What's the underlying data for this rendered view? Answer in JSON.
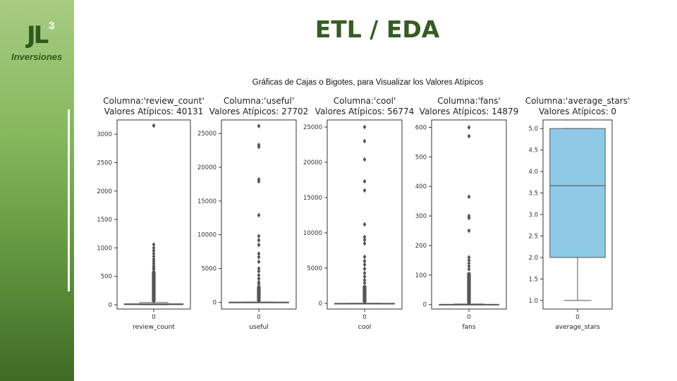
{
  "header": {
    "title": "ETL / EDA",
    "subtitle": "Gráficas de Cajas o Bigotes, para Visualizar los Valores Atípicos"
  },
  "logo": {
    "letters": "JL",
    "superscript": "3",
    "tagline": "Inversiones"
  },
  "colors": {
    "sidebar_top": "#a8cc82",
    "sidebar_bottom": "#3f6b26",
    "title": "#375c23",
    "box_fill": "#8ecae6",
    "outliers": "#555555"
  },
  "chart_data": [
    {
      "type": "box",
      "title_line1": "Columna:'review_count'",
      "title_line2": "Valores Atípicos: 40131",
      "xlabel": "review_count",
      "category": "0",
      "ylim": [
        -75,
        3250
      ],
      "yticks": [
        0,
        500,
        1000,
        1500,
        2000,
        2500,
        3000
      ],
      "box": {
        "min": 0,
        "q1": 2,
        "median": 7,
        "q3": 17,
        "max": 40
      },
      "outliers_dense_range": [
        40,
        600
      ],
      "outliers": [
        620,
        650,
        680,
        720,
        760,
        800,
        850,
        900,
        950,
        1000,
        1060,
        3150
      ]
    },
    {
      "type": "box",
      "title_line1": "Columna:'useful'",
      "title_line2": "Valores Atípicos: 27702",
      "xlabel": "useful",
      "category": "0",
      "ylim": [
        -1000,
        27000
      ],
      "yticks": [
        0,
        5000,
        10000,
        15000,
        20000,
        25000
      ],
      "box": {
        "min": 0,
        "q1": 1,
        "median": 5,
        "q3": 20,
        "max": 45
      },
      "outliers_dense_range": [
        45,
        2500
      ],
      "outliers": [
        2700,
        3000,
        3500,
        4000,
        4600,
        5000,
        6000,
        6700,
        7200,
        8500,
        9200,
        9800,
        12900,
        17900,
        18200,
        23000,
        23300,
        26100
      ]
    },
    {
      "type": "box",
      "title_line1": "Columna:'cool'",
      "title_line2": "Valores Atípicos: 56774",
      "xlabel": "cool",
      "category": "0",
      "ylim": [
        -800,
        26000
      ],
      "yticks": [
        0,
        5000,
        10000,
        15000,
        20000,
        25000
      ],
      "box": {
        "min": 0,
        "q1": 0,
        "median": 1,
        "q3": 5,
        "max": 12
      },
      "outliers_dense_range": [
        12,
        2600
      ],
      "outliers": [
        2900,
        3300,
        3800,
        4300,
        4900,
        5500,
        6000,
        6600,
        8500,
        9000,
        9400,
        11200,
        16000,
        17300,
        20400,
        23000,
        25000
      ]
    },
    {
      "type": "box",
      "title_line1": "Columna:'fans'",
      "title_line2": "Valores Atípicos: 14879",
      "xlabel": "fans",
      "category": "0",
      "ylim": [
        -15,
        625
      ],
      "yticks": [
        0,
        100,
        200,
        300,
        400,
        500,
        600
      ],
      "box": {
        "min": 0,
        "q1": 0,
        "median": 0,
        "q3": 1,
        "max": 2
      },
      "outliers_dense_range": [
        2,
        110
      ],
      "outliers": [
        120,
        130,
        140,
        150,
        160,
        250,
        293,
        300,
        365,
        570,
        600
      ]
    },
    {
      "type": "box",
      "title_line1": "Columna:'average_stars'",
      "title_line2": "Valores Atípicos: 0",
      "xlabel": "average_stars",
      "category": "0",
      "ylim": [
        0.8,
        5.2
      ],
      "yticks": [
        "1.0",
        "1.5",
        "2.0",
        "2.5",
        "3.0",
        "3.5",
        "4.0",
        "4.5",
        "5.0"
      ],
      "box": {
        "min": 1.0,
        "q1": 2.0,
        "median": 3.67,
        "q3": 5.0,
        "max": 5.0
      },
      "outliers_dense_range": [],
      "outliers": []
    }
  ]
}
